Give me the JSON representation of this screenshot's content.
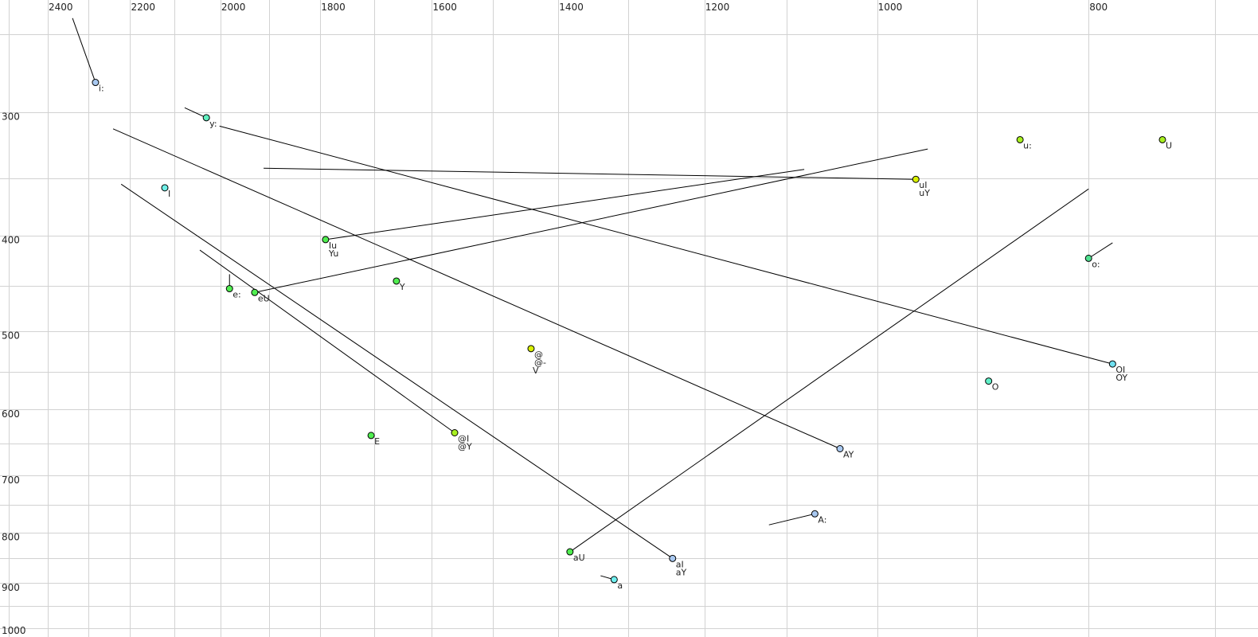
{
  "chart_data": {
    "type": "scatter",
    "title": "",
    "xlabel": "",
    "ylabel": "",
    "x_scale": "log",
    "x_reversed": true,
    "y_scale": "log",
    "y_reversed": false,
    "xlim": [
      2524,
      669
    ],
    "ylim": [
      231,
      1021
    ],
    "x_ticks": [
      2400,
      2200,
      2000,
      1800,
      1600,
      1400,
      1200,
      1000,
      800
    ],
    "y_ticks": [
      300,
      400,
      500,
      600,
      700,
      800,
      900,
      1000
    ],
    "x_grid_step": 100,
    "y_grid_step": 50,
    "grid": true,
    "legend": "none",
    "points": [
      {
        "labels": [
          "i:"
        ],
        "x": 2282,
        "y": 280,
        "from": [
          2338,
          241
        ],
        "color": "#a8c8f0"
      },
      {
        "labels": [
          "y:"
        ],
        "x": 2030,
        "y": 304,
        "from": [
          2077,
          297
        ],
        "color": "#60f0c0"
      },
      {
        "labels": [
          "I"
        ],
        "x": 2121,
        "y": 358,
        "color": "#70f0e8"
      },
      {
        "labels": [
          "e:"
        ],
        "x": 1981,
        "y": 453,
        "from": [
          1981,
          438
        ],
        "color": "#50ee50"
      },
      {
        "labels": [
          "eU"
        ],
        "x": 1929,
        "y": 457,
        "from": [
          948,
          327
        ],
        "color": "#50ee50"
      },
      {
        "labels": [
          "Iu",
          "Yu"
        ],
        "x": 1790,
        "y": 404,
        "from": [
          1080,
          343
        ],
        "color": "#50ee50"
      },
      {
        "labels": [
          "Y"
        ],
        "x": 1661,
        "y": 445,
        "color": "#50ee50"
      },
      {
        "labels": [
          "@",
          "@-",
          "V"
        ],
        "x": 1441,
        "y": 521,
        "color": "#d8f000"
      },
      {
        "labels": [
          "E"
        ],
        "x": 1706,
        "y": 638,
        "color": "#50ee50"
      },
      {
        "labels": [
          "@I",
          "@Y"
        ],
        "x": 1562,
        "y": 634,
        "from": [
          2044,
          414
        ],
        "color": "#a8f020"
      },
      {
        "labels": [
          "AY"
        ],
        "x": 1040,
        "y": 658,
        "from": [
          2240,
          312
        ],
        "color": "#a8c8f0"
      },
      {
        "labels": [
          "A:"
        ],
        "x": 1068,
        "y": 766,
        "from": [
          1121,
          786
        ],
        "color": "#a8c8f0"
      },
      {
        "labels": [
          "aU"
        ],
        "x": 1383,
        "y": 837,
        "from": [
          800,
          359
        ],
        "color": "#50ee50"
      },
      {
        "labels": [
          "aI",
          "aY"
        ],
        "x": 1241,
        "y": 850,
        "from": [
          2221,
          355
        ],
        "color": "#a8c8f0"
      },
      {
        "labels": [
          "a"
        ],
        "x": 1320,
        "y": 893,
        "from": [
          1339,
          885
        ],
        "color": "#70f0f0"
      },
      {
        "labels": [
          "uI",
          "uY"
        ],
        "x": 960,
        "y": 351,
        "from": [
          1911,
          342
        ],
        "color": "#d8f000"
      },
      {
        "labels": [
          "u:"
        ],
        "x": 860,
        "y": 320,
        "color": "#a8f020"
      },
      {
        "labels": [
          "U"
        ],
        "x": 740,
        "y": 320,
        "color": "#a8f020"
      },
      {
        "labels": [
          "o:"
        ],
        "x": 800,
        "y": 422,
        "from": [
          780,
          407
        ],
        "color": "#50e090"
      },
      {
        "labels": [
          "OI",
          "OY"
        ],
        "x": 780,
        "y": 540,
        "from": [
          2002,
          310
        ],
        "color": "#70e0f0"
      },
      {
        "labels": [
          "O"
        ],
        "x": 889,
        "y": 562,
        "color": "#60f0c8"
      }
    ]
  }
}
